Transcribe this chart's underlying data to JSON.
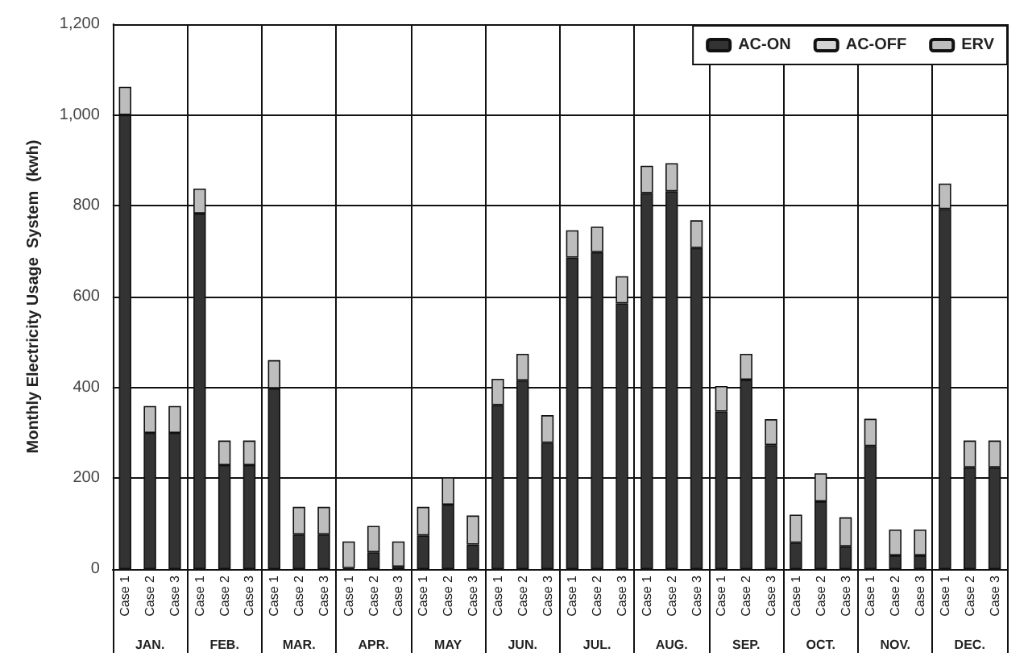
{
  "chart_data": {
    "type": "bar",
    "stacked": true,
    "ylabel": "Monthly Electricity Usage  System  (kwh)",
    "categories": [
      "Case 1",
      "Case 2",
      "Case 3",
      "Case 1",
      "Case 2",
      "Case 3",
      "Case 1",
      "Case 2",
      "Case 3",
      "Case 1",
      "Case 2",
      "Case 3",
      "Case 1",
      "Case 2",
      "Case 3",
      "Case 1",
      "Case 2",
      "Case 3",
      "Case 1",
      "Case 2",
      "Case 3",
      "Case 1",
      "Case 2",
      "Case 3",
      "Case 1",
      "Case 2",
      "Case 3",
      "Case 1",
      "Case 2",
      "Case 3",
      "Case 1",
      "Case 2",
      "Case 3",
      "Case 1",
      "Case 2",
      "Case 3"
    ],
    "annotations": [
      "JAN.",
      "FEB.",
      "MAR.",
      "APR.",
      "MAY",
      "JUN.",
      "JUL.",
      "AUG.",
      "SEP.",
      "OCT.",
      "NOV.",
      "DEC."
    ],
    "series": [
      {
        "name": "AC-ON",
        "color": "#333333",
        "values": [
          1000,
          300,
          300,
          783,
          229,
          229,
          398,
          76,
          76,
          2,
          37,
          5,
          74,
          142,
          54,
          361,
          415,
          278,
          686,
          698,
          585,
          828,
          832,
          707,
          347,
          417,
          273,
          58,
          149,
          50,
          271,
          30,
          30,
          793,
          224,
          224
        ]
      },
      {
        "name": "AC-OFF",
        "color": "#d4d4d4",
        "values": [
          0,
          0,
          0,
          0,
          0,
          0,
          0,
          0,
          0,
          0,
          0,
          0,
          0,
          0,
          0,
          0,
          0,
          0,
          0,
          0,
          0,
          0,
          0,
          0,
          0,
          0,
          0,
          0,
          0,
          0,
          0,
          0,
          0,
          0,
          0,
          0
        ]
      },
      {
        "name": "ERV",
        "color": "#bdbdbd",
        "values": [
          62,
          59,
          59,
          55,
          54,
          54,
          62,
          61,
          61,
          59,
          58,
          56,
          63,
          60,
          64,
          58,
          59,
          61,
          60,
          56,
          60,
          60,
          62,
          61,
          56,
          57,
          57,
          62,
          62,
          64,
          60,
          57,
          57,
          56,
          59,
          59
        ]
      }
    ],
    "ylim": [
      0,
      1200
    ],
    "yticks": [
      {
        "value": 0,
        "label": "0"
      },
      {
        "value": 200,
        "label": "200"
      },
      {
        "value": 400,
        "label": "400"
      },
      {
        "value": 600,
        "label": "600"
      },
      {
        "value": 800,
        "label": "800"
      },
      {
        "value": 1000,
        "label": "1,000"
      },
      {
        "value": 1200,
        "label": "1,200"
      }
    ],
    "grid": true,
    "legend": "top right"
  }
}
